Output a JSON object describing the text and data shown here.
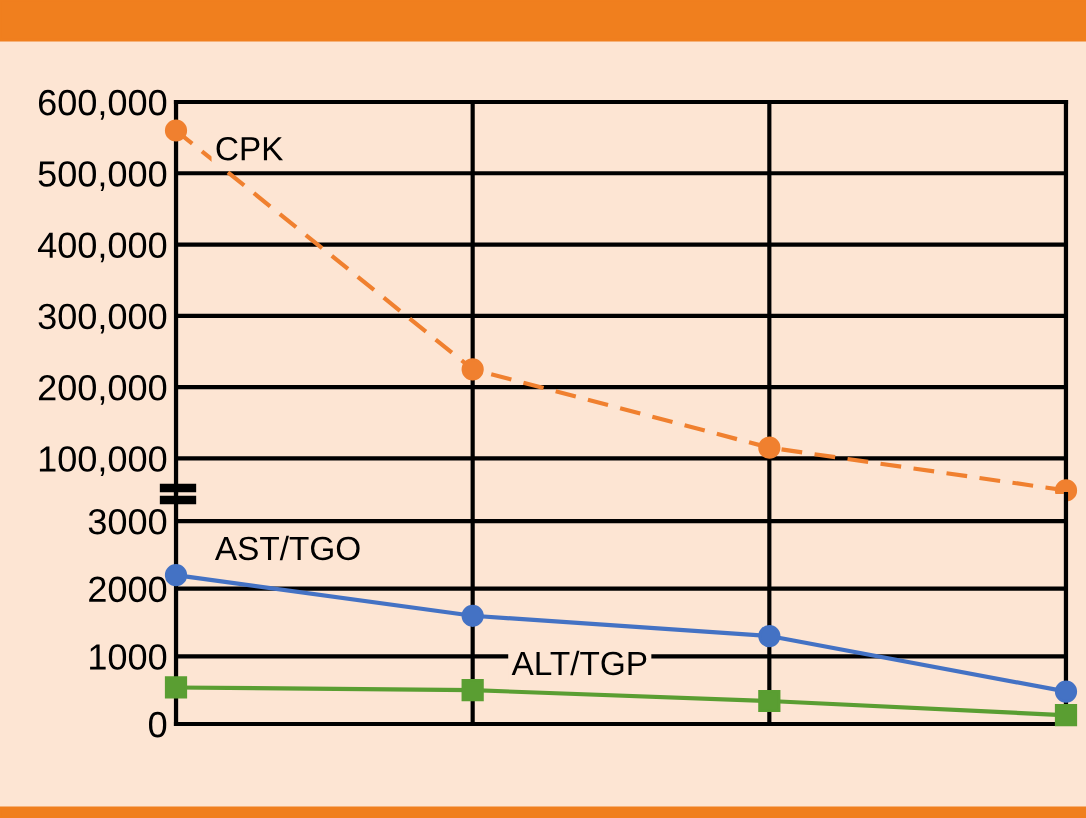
{
  "chart_data": [
    {
      "type": "line",
      "categories": [
        null,
        null,
        null,
        null
      ],
      "ylim": [
        50000,
        600000
      ],
      "yticks": [
        {
          "value": 100000,
          "label": "100,000"
        },
        {
          "value": 200000,
          "label": "200,000"
        },
        {
          "value": 300000,
          "label": "300,000"
        },
        {
          "value": 400000,
          "label": "400,000"
        },
        {
          "value": 500000,
          "label": "500,000"
        },
        {
          "value": 600000,
          "label": "600,000"
        }
      ],
      "grid": true,
      "tick_labels": "y",
      "series": [
        {
          "name": "CPK",
          "color": "#f0802f",
          "marker": "circle",
          "line_style": "dashed",
          "values": [
            560000,
            225000,
            115000,
            55000
          ]
        }
      ]
    },
    {
      "type": "line",
      "categories": [
        null,
        null,
        null,
        null
      ],
      "ylim": [
        0,
        3400
      ],
      "yticks": [
        0,
        1000,
        2000,
        3000
      ],
      "grid": true,
      "tick_labels": "y",
      "series": [
        {
          "name": "AST/TGO",
          "color": "#4472c4",
          "marker": "circle",
          "line_style": "solid",
          "values": [
            2200,
            1600,
            1300,
            480
          ]
        },
        {
          "name": "ALT/TGP",
          "color": "#5a9e32",
          "marker": "square",
          "line_style": "solid",
          "values": [
            540,
            500,
            340,
            130
          ]
        }
      ]
    }
  ]
}
